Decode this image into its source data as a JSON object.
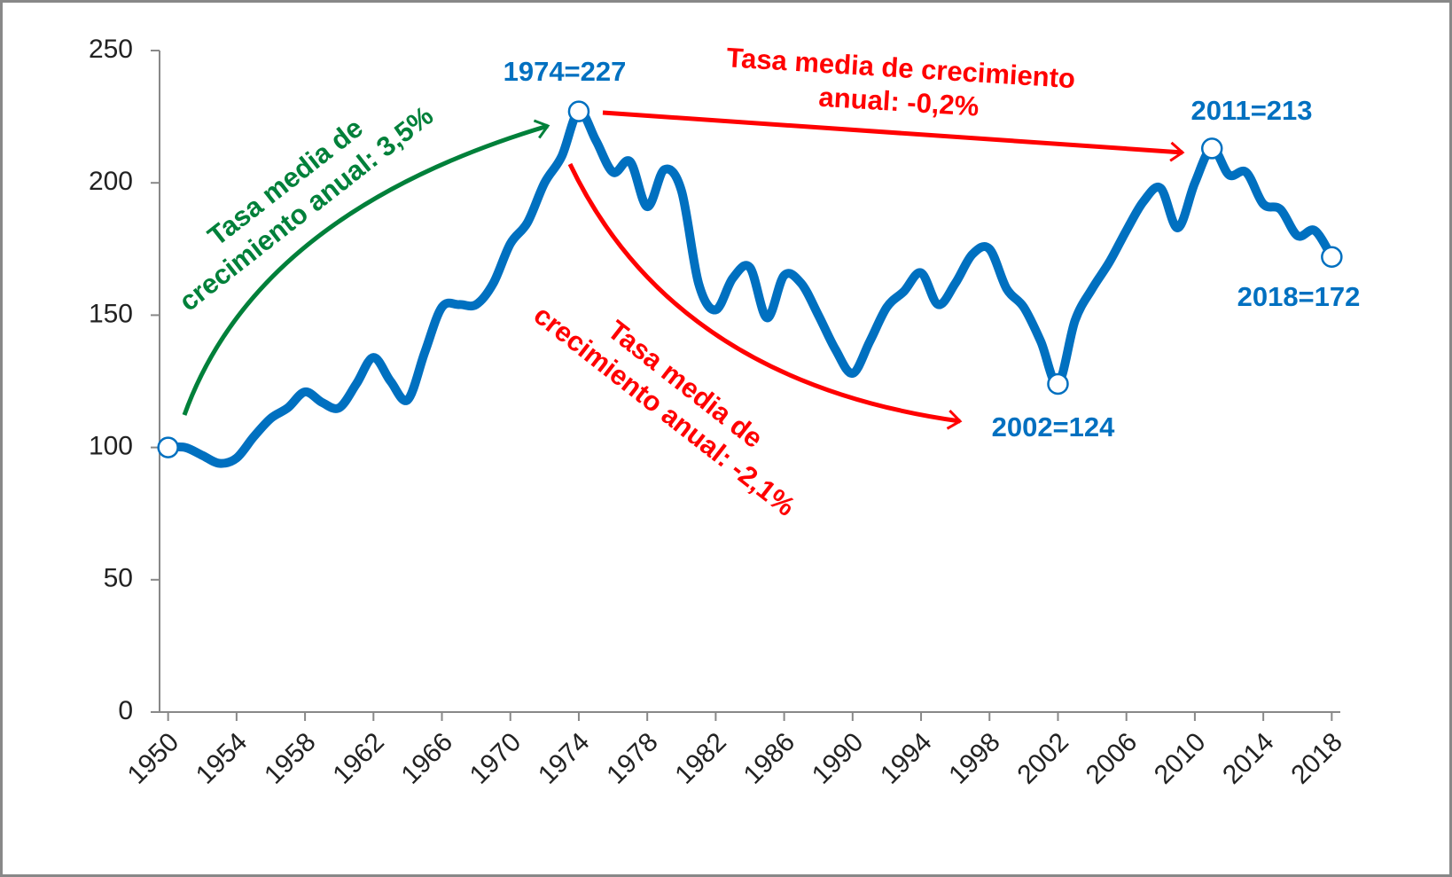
{
  "chart_data": {
    "type": "line",
    "x": [
      1950,
      1951,
      1952,
      1953,
      1954,
      1955,
      1956,
      1957,
      1958,
      1959,
      1960,
      1961,
      1962,
      1963,
      1964,
      1965,
      1966,
      1967,
      1968,
      1969,
      1970,
      1971,
      1972,
      1973,
      1974,
      1975,
      1976,
      1977,
      1978,
      1979,
      1980,
      1981,
      1982,
      1983,
      1984,
      1985,
      1986,
      1987,
      1988,
      1989,
      1990,
      1991,
      1992,
      1993,
      1994,
      1995,
      1996,
      1997,
      1998,
      1999,
      2000,
      2001,
      2002,
      2003,
      2004,
      2005,
      2006,
      2007,
      2008,
      2009,
      2010,
      2011,
      2012,
      2013,
      2014,
      2015,
      2016,
      2017,
      2018
    ],
    "series": [
      {
        "name": null,
        "color": "#0070c0",
        "values": [
          100,
          100,
          97,
          94,
          96,
          104,
          111,
          115,
          121,
          117,
          115,
          124,
          134,
          125,
          118,
          136,
          153,
          154,
          154,
          162,
          177,
          185,
          200,
          210,
          227,
          216,
          204,
          208,
          191,
          205,
          197,
          162,
          152,
          164,
          168,
          149,
          165,
          162,
          150,
          137,
          128,
          140,
          153,
          159,
          166,
          154,
          162,
          173,
          175,
          160,
          153,
          140,
          124,
          148,
          160,
          170,
          182,
          193,
          198,
          183,
          200,
          213,
          203,
          204,
          192,
          190,
          180,
          182,
          172
        ]
      }
    ],
    "highlight_points": [
      1950,
      1974,
      2002,
      2011,
      2018
    ],
    "xlim": [
      1949.5,
      2018.5
    ],
    "xticks": [
      1950,
      1954,
      1958,
      1962,
      1966,
      1970,
      1974,
      1978,
      1982,
      1986,
      1990,
      1994,
      1998,
      2002,
      2006,
      2010,
      2014,
      2018
    ],
    "ylim": [
      0,
      250
    ],
    "yticks": [
      0,
      50,
      100,
      150,
      200,
      250
    ],
    "annotations": [
      {
        "text": [
          "1974=227"
        ],
        "color": "#0070c0"
      },
      {
        "text": [
          "2011=213"
        ],
        "color": "#0070c0"
      },
      {
        "text": [
          "2002=124"
        ],
        "color": "#0070c0"
      },
      {
        "text": [
          "2018=172"
        ],
        "color": "#0070c0"
      },
      {
        "text": [
          "Tasa media de",
          "crecimiento anual: 3,5%"
        ],
        "color": "#00803a"
      },
      {
        "text": [
          "Tasa media de crecimiento",
          "anual: -0,2%"
        ],
        "color": "#ff0000"
      },
      {
        "text": [
          "Tasa media de",
          "crecimiento anual: -2,1%"
        ],
        "color": "#ff0000"
      }
    ]
  }
}
